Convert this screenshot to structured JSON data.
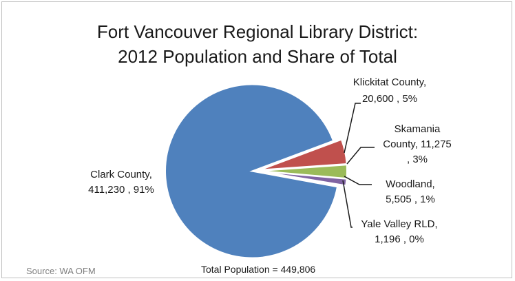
{
  "chart_data": {
    "type": "pie",
    "title_line1": "Fort Vancouver Regional Library District:",
    "title_line2": "2012 Population and Share of Total",
    "slices": [
      {
        "name": "Clark County",
        "value": 411230,
        "percent": "91%",
        "color": "#4f81bd",
        "label_lines": [
          "Clark County,",
          "411,230 , 91%"
        ]
      },
      {
        "name": "Klickitat County",
        "value": 20600,
        "percent": "5%",
        "color": "#c0504d",
        "label_lines": [
          "Klickitat County,",
          "20,600 , 5%"
        ]
      },
      {
        "name": "Skamania County",
        "value": 11275,
        "percent": "3%",
        "color": "#9bbb59",
        "label_lines": [
          "Skamania",
          "County,  11,275",
          ", 3%"
        ]
      },
      {
        "name": "Woodland",
        "value": 5505,
        "percent": "1%",
        "color": "#8064a2",
        "label_lines": [
          "Woodland,",
          "5,505 , 1%"
        ]
      },
      {
        "name": "Yale Valley RLD",
        "value": 1196,
        "percent": "0%",
        "color": "#4bacc6",
        "label_lines": [
          "Yale Valley RLD,",
          "1,196 , 0%"
        ]
      }
    ],
    "total_label": "Total Population = 449,806",
    "source": "Source: WA OFM"
  }
}
